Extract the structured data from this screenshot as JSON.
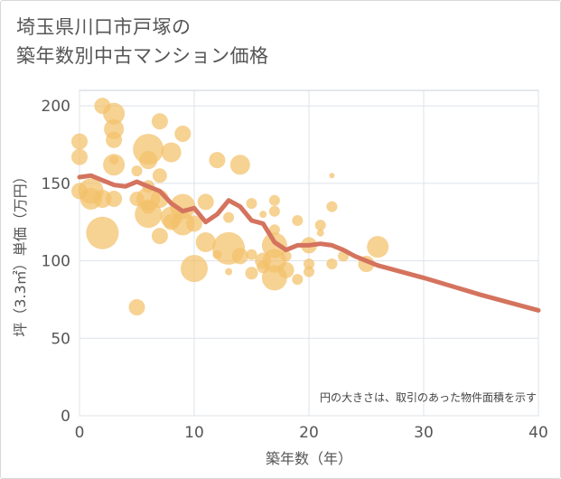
{
  "title_lines": [
    "埼玉県川口市戸塚の",
    "築年数別中古マンション価格"
  ],
  "chart_data": {
    "type": "scatter",
    "xlabel": "築年数（年）",
    "ylabel": "坪（3.3㎡）単価（万円）",
    "xlim": [
      0,
      40
    ],
    "ylim": [
      0,
      210
    ],
    "xticks": [
      "0",
      "10",
      "20",
      "30",
      "40"
    ],
    "yticks": [
      "0",
      "50",
      "100",
      "150",
      "200"
    ],
    "grid": true,
    "annotation": "円の大きさは、取引のあった物件面積を示す",
    "colors": {
      "bubble": "#f2c069",
      "line": "#d4735e",
      "grid": "#dde3ea",
      "plot_border": "#c8d0da"
    },
    "scatter_points": [
      {
        "x": 0,
        "y": 177,
        "s": 9
      },
      {
        "x": 0,
        "y": 167,
        "s": 9
      },
      {
        "x": 0,
        "y": 145,
        "s": 9
      },
      {
        "x": 1,
        "y": 145,
        "s": 14
      },
      {
        "x": 1,
        "y": 140,
        "s": 12
      },
      {
        "x": 2,
        "y": 200,
        "s": 9
      },
      {
        "x": 2,
        "y": 118,
        "s": 18
      },
      {
        "x": 2,
        "y": 140,
        "s": 10
      },
      {
        "x": 3,
        "y": 195,
        "s": 12
      },
      {
        "x": 3,
        "y": 185,
        "s": 11
      },
      {
        "x": 3,
        "y": 178,
        "s": 9
      },
      {
        "x": 3,
        "y": 162,
        "s": 12
      },
      {
        "x": 3,
        "y": 140,
        "s": 9
      },
      {
        "x": 3,
        "y": 165,
        "s": 5
      },
      {
        "x": 5,
        "y": 158,
        "s": 6
      },
      {
        "x": 5,
        "y": 140,
        "s": 8
      },
      {
        "x": 5,
        "y": 70,
        "s": 9
      },
      {
        "x": 6,
        "y": 172,
        "s": 17
      },
      {
        "x": 6,
        "y": 165,
        "s": 10
      },
      {
        "x": 6,
        "y": 148,
        "s": 7
      },
      {
        "x": 6,
        "y": 140,
        "s": 13
      },
      {
        "x": 6,
        "y": 130,
        "s": 15
      },
      {
        "x": 6,
        "y": 135,
        "s": 8
      },
      {
        "x": 7,
        "y": 190,
        "s": 9
      },
      {
        "x": 7,
        "y": 155,
        "s": 8
      },
      {
        "x": 7,
        "y": 140,
        "s": 10
      },
      {
        "x": 7,
        "y": 116,
        "s": 9
      },
      {
        "x": 8,
        "y": 170,
        "s": 11
      },
      {
        "x": 8,
        "y": 128,
        "s": 12
      },
      {
        "x": 8,
        "y": 125,
        "s": 9
      },
      {
        "x": 9,
        "y": 182,
        "s": 9
      },
      {
        "x": 9,
        "y": 135,
        "s": 14
      },
      {
        "x": 9,
        "y": 124,
        "s": 13
      },
      {
        "x": 10,
        "y": 95,
        "s": 15
      },
      {
        "x": 10,
        "y": 124,
        "s": 9
      },
      {
        "x": 11,
        "y": 112,
        "s": 11
      },
      {
        "x": 11,
        "y": 138,
        "s": 9
      },
      {
        "x": 12,
        "y": 165,
        "s": 9
      },
      {
        "x": 12,
        "y": 104,
        "s": 5
      },
      {
        "x": 13,
        "y": 108,
        "s": 18
      },
      {
        "x": 13,
        "y": 93,
        "s": 4
      },
      {
        "x": 13,
        "y": 128,
        "s": 6
      },
      {
        "x": 14,
        "y": 162,
        "s": 11
      },
      {
        "x": 14,
        "y": 103,
        "s": 9
      },
      {
        "x": 15,
        "y": 137,
        "s": 6
      },
      {
        "x": 15,
        "y": 104,
        "s": 6
      },
      {
        "x": 15,
        "y": 92,
        "s": 7
      },
      {
        "x": 16,
        "y": 130,
        "s": 4
      },
      {
        "x": 16,
        "y": 100,
        "s": 9
      },
      {
        "x": 16,
        "y": 96,
        "s": 7
      },
      {
        "x": 17,
        "y": 139,
        "s": 6
      },
      {
        "x": 17,
        "y": 132,
        "s": 6
      },
      {
        "x": 17,
        "y": 120,
        "s": 6
      },
      {
        "x": 17,
        "y": 110,
        "s": 14
      },
      {
        "x": 17,
        "y": 100,
        "s": 13
      },
      {
        "x": 17,
        "y": 89,
        "s": 14
      },
      {
        "x": 18,
        "y": 94,
        "s": 9
      },
      {
        "x": 18,
        "y": 103,
        "s": 6
      },
      {
        "x": 19,
        "y": 126,
        "s": 6
      },
      {
        "x": 19,
        "y": 88,
        "s": 6
      },
      {
        "x": 20,
        "y": 110,
        "s": 9
      },
      {
        "x": 20,
        "y": 98,
        "s": 6
      },
      {
        "x": 20,
        "y": 93,
        "s": 6
      },
      {
        "x": 21,
        "y": 123,
        "s": 6
      },
      {
        "x": 21,
        "y": 118,
        "s": 4
      },
      {
        "x": 22,
        "y": 135,
        "s": 6
      },
      {
        "x": 22,
        "y": 155,
        "s": 3
      },
      {
        "x": 22,
        "y": 98,
        "s": 6
      },
      {
        "x": 23,
        "y": 103,
        "s": 6
      },
      {
        "x": 25,
        "y": 98,
        "s": 9
      },
      {
        "x": 26,
        "y": 109,
        "s": 12
      }
    ],
    "trend_line": {
      "x": [
        0,
        1,
        2,
        3,
        4,
        5,
        6,
        7,
        8,
        9,
        10,
        11,
        12,
        13,
        14,
        15,
        16,
        17,
        18,
        19,
        20,
        21,
        22,
        23,
        24,
        25,
        26,
        30,
        35,
        40
      ],
      "y": [
        154,
        155,
        152,
        149,
        148,
        151,
        148,
        145,
        137,
        132,
        134,
        125,
        130,
        139,
        135,
        126,
        124,
        112,
        107,
        110,
        110,
        111,
        110,
        107,
        103,
        100,
        97,
        89,
        78,
        68
      ]
    }
  }
}
